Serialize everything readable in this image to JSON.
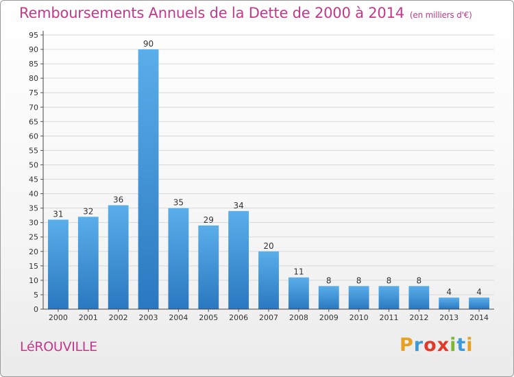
{
  "chart_data": {
    "type": "bar",
    "title": "Remboursements Annuels de la Dette de 2000 à 2014",
    "unit_note": "(en milliers d'€)",
    "categories": [
      "2000",
      "2001",
      "2002",
      "2003",
      "2004",
      "2005",
      "2006",
      "2007",
      "2008",
      "2009",
      "2010",
      "2011",
      "2012",
      "2013",
      "2014"
    ],
    "values": [
      31,
      32,
      36,
      90,
      35,
      29,
      34,
      20,
      11,
      8,
      8,
      8,
      8,
      4,
      4
    ],
    "ylim": [
      0,
      95
    ],
    "yticks": [
      0,
      5,
      10,
      15,
      20,
      25,
      30,
      35,
      40,
      45,
      50,
      55,
      60,
      65,
      70,
      75,
      80,
      85,
      90,
      95
    ],
    "grid": true,
    "bar_color": "#3d8fd6"
  },
  "footer": {
    "commune": "LéROUVILLE",
    "brand": "Proxiti",
    "brand_colors": [
      "#e8a020",
      "#3d9ad8",
      "#e23a2a",
      "#e23a2a",
      "#7cb82f",
      "#3d9ad8",
      "#e8a020"
    ]
  }
}
